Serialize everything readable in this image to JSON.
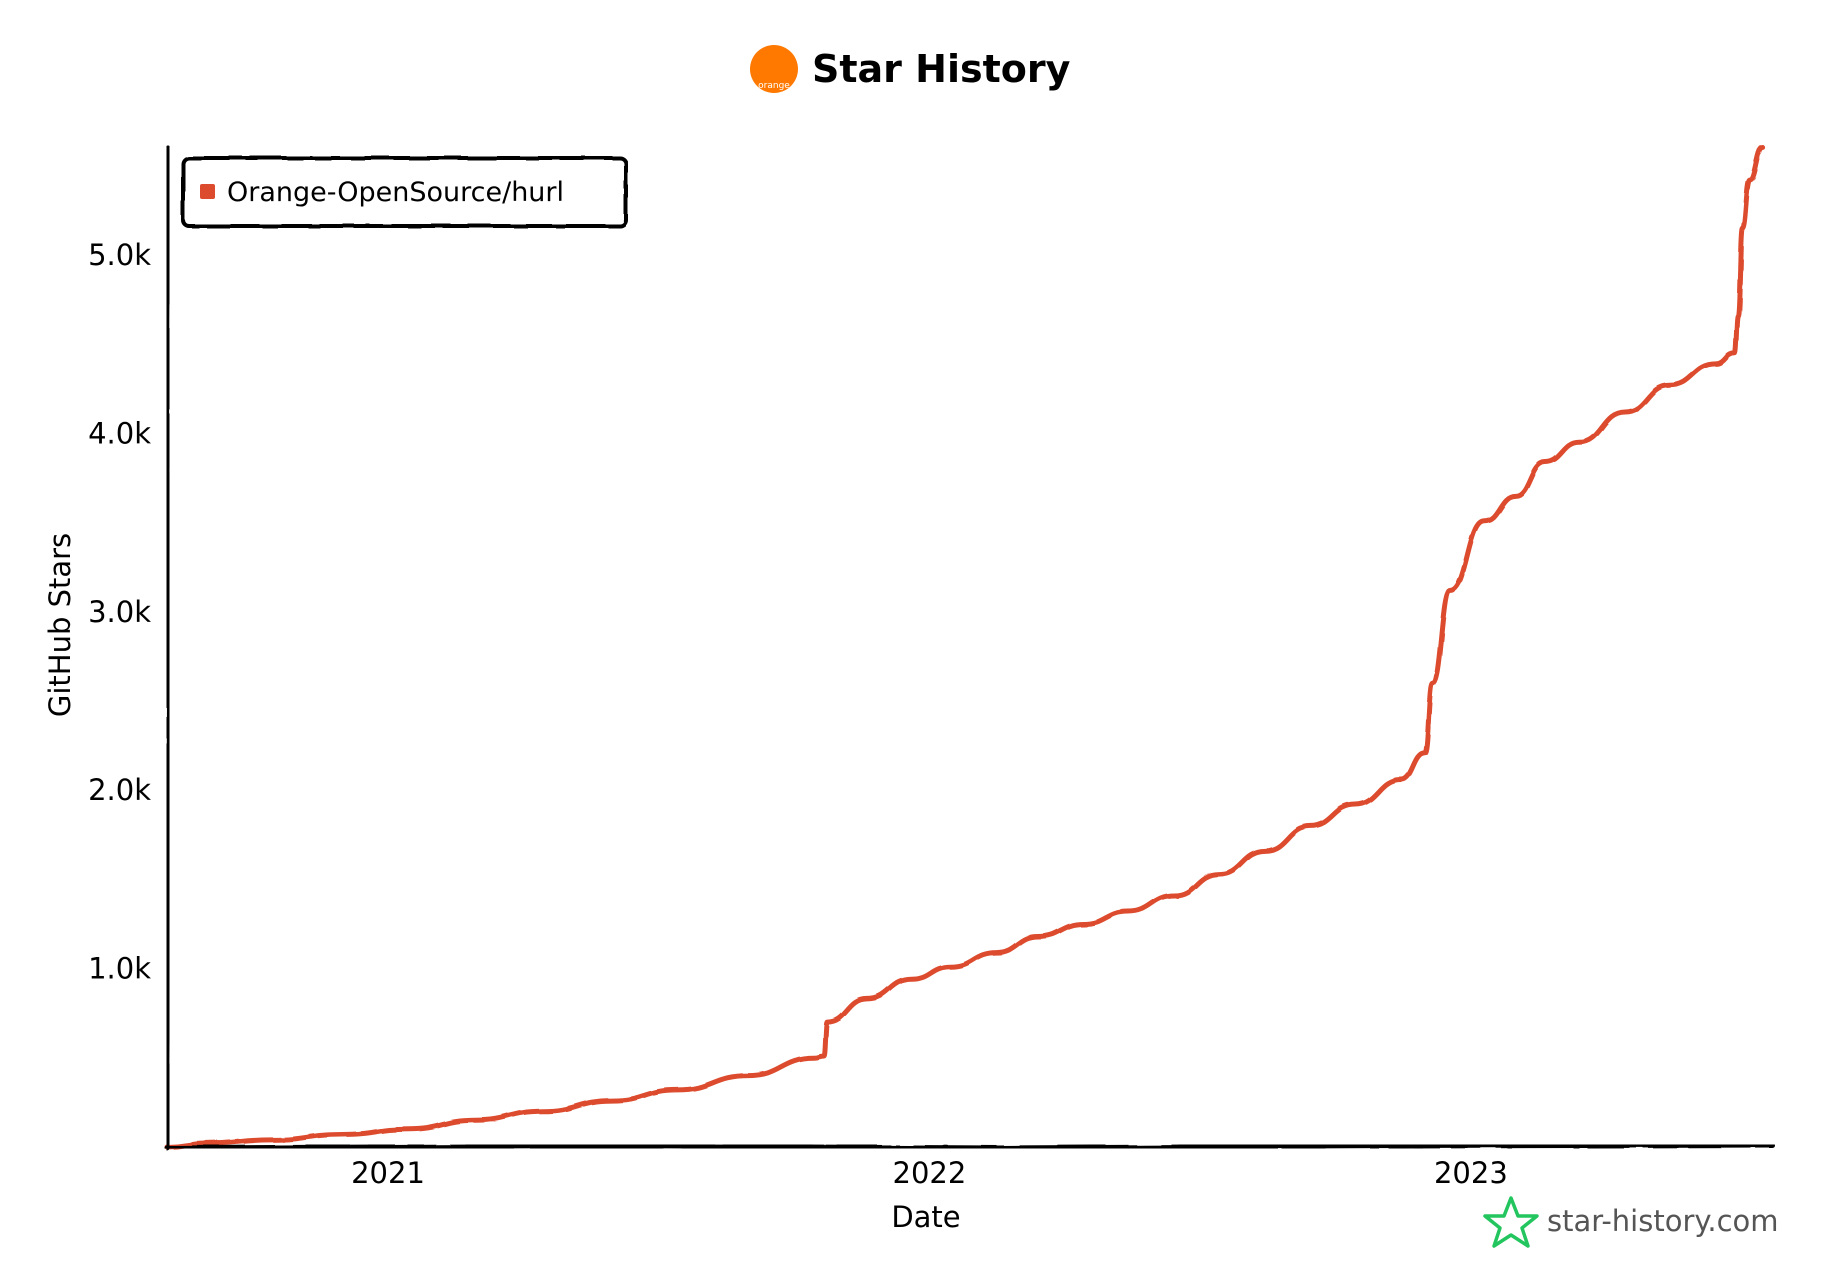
{
  "header": {
    "title": "Star History",
    "logo_label": "orange",
    "logo_color": "#FF7900"
  },
  "footer": {
    "brand": "star-history.com",
    "brand_icon": "star-outline-icon",
    "brand_icon_color": "#22C55E"
  },
  "chart_data": {
    "type": "line",
    "title": "Star History",
    "xlabel": "Date",
    "ylabel": "GitHub Stars",
    "x_ticks": [
      "2021",
      "2022",
      "2023"
    ],
    "y_ticks": [
      "1.0k",
      "2.0k",
      "3.0k",
      "4.0k",
      "5.0k"
    ],
    "ylim": [
      0,
      5600
    ],
    "xlim": [
      "2020-08-05",
      "2023-07-23"
    ],
    "legend_position": "top-left",
    "series": [
      {
        "name": "Orange-OpenSource/hurl",
        "color": "#DD4B2E",
        "x": [
          "2020-08-05",
          "2020-09-01",
          "2020-10-15",
          "2020-12-01",
          "2021-01-15",
          "2021-03-01",
          "2021-04-15",
          "2021-06-01",
          "2021-07-15",
          "2021-09-01",
          "2021-10-15",
          "2021-10-22",
          "2021-10-24",
          "2021-11-20",
          "2021-12-20",
          "2022-01-15",
          "2022-02-15",
          "2022-03-15",
          "2022-04-15",
          "2022-05-15",
          "2022-06-15",
          "2022-07-15",
          "2022-08-15",
          "2022-09-15",
          "2022-10-15",
          "2022-11-15",
          "2022-12-01",
          "2022-12-06",
          "2022-12-18",
          "2023-01-10",
          "2023-01-31",
          "2023-02-20",
          "2023-03-15",
          "2023-04-15",
          "2023-05-15",
          "2023-06-15",
          "2023-06-28",
          "2023-06-30",
          "2023-07-03",
          "2023-07-08",
          "2023-07-17"
        ],
        "y": [
          0,
          20,
          40,
          70,
          100,
          150,
          200,
          260,
          320,
          400,
          500,
          510,
          700,
          830,
          940,
          1010,
          1090,
          1180,
          1250,
          1320,
          1410,
          1530,
          1660,
          1800,
          1920,
          2060,
          2210,
          2600,
          3120,
          3510,
          3650,
          3840,
          3950,
          4120,
          4270,
          4390,
          4450,
          4660,
          5150,
          5420,
          5600
        ]
      }
    ]
  }
}
